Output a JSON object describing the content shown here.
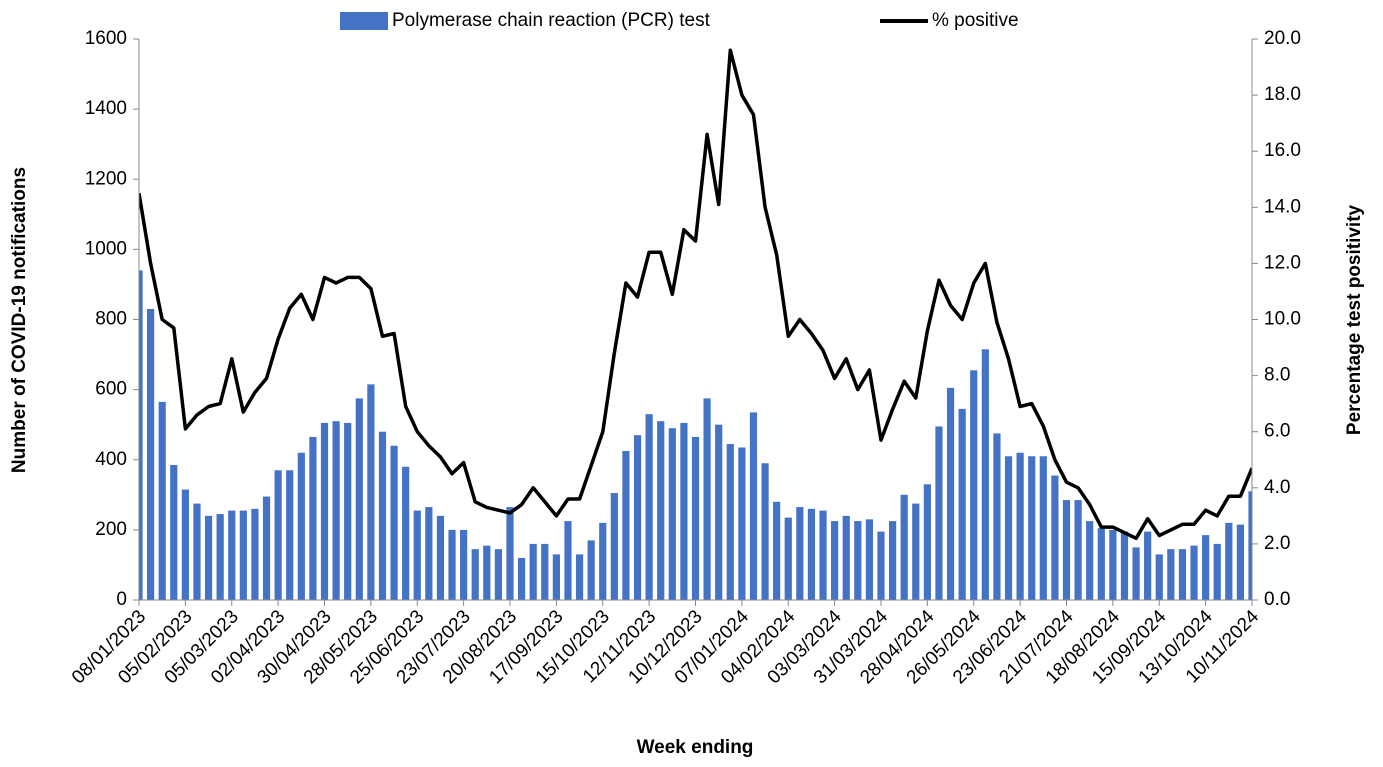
{
  "chart_data": {
    "type": "bar-line",
    "x_label": "Week ending",
    "y_label": "Number of COVID-19 notifications",
    "y2_label": "Percentage test positivity",
    "categories": [
      "08/01/2023",
      null,
      null,
      null,
      "05/02/2023",
      null,
      null,
      null,
      "05/03/2023",
      null,
      null,
      null,
      "02/04/2023",
      null,
      null,
      null,
      "30/04/2023",
      null,
      null,
      null,
      "28/05/2023",
      null,
      null,
      null,
      "25/06/2023",
      null,
      null,
      null,
      "23/07/2023",
      null,
      null,
      null,
      "20/08/2023",
      null,
      null,
      null,
      "17/09/2023",
      null,
      null,
      null,
      "15/10/2023",
      null,
      null,
      null,
      "12/11/2023",
      null,
      null,
      null,
      "10/12/2023",
      null,
      null,
      null,
      "07/01/2024",
      null,
      null,
      null,
      "04/02/2024",
      null,
      null,
      null,
      "03/03/2024",
      null,
      null,
      null,
      "31/03/2024",
      null,
      null,
      null,
      "28/04/2024",
      null,
      null,
      null,
      "26/05/2024",
      null,
      null,
      null,
      "23/06/2024",
      null,
      null,
      null,
      "21/07/2024",
      null,
      null,
      null,
      "18/08/2024",
      null,
      null,
      null,
      "15/09/2024",
      null,
      null,
      null,
      "13/10/2024",
      null,
      null,
      null,
      "10/11/2024"
    ],
    "series": [
      {
        "name": "Polymerase chain reaction (PCR) test",
        "type": "bar",
        "color": "#4472c4",
        "values": [
          940,
          830,
          565,
          385,
          315,
          275,
          240,
          245,
          255,
          255,
          260,
          295,
          370,
          370,
          420,
          465,
          505,
          510,
          505,
          575,
          615,
          480,
          440,
          380,
          255,
          265,
          240,
          200,
          200,
          145,
          155,
          145,
          265,
          120,
          160,
          160,
          130,
          225,
          130,
          170,
          220,
          305,
          425,
          470,
          530,
          510,
          490,
          505,
          465,
          575,
          500,
          445,
          435,
          535,
          390,
          280,
          235,
          265,
          260,
          255,
          225,
          240,
          225,
          230,
          195,
          225,
          300,
          275,
          330,
          495,
          605,
          545,
          655,
          715,
          475,
          410,
          420,
          410,
          410,
          355,
          285,
          285,
          225,
          205,
          200,
          195,
          150,
          195,
          130,
          145,
          145,
          155,
          185,
          160,
          220,
          215,
          310
        ]
      },
      {
        "name": "% positive",
        "type": "line",
        "color": "#000000",
        "axis": "y2",
        "values": [
          14.5,
          12.0,
          10.0,
          9.7,
          6.1,
          6.6,
          6.9,
          7.0,
          8.6,
          6.7,
          7.4,
          7.9,
          9.3,
          10.4,
          10.9,
          10.0,
          11.5,
          11.3,
          11.5,
          11.5,
          11.1,
          9.4,
          9.5,
          6.9,
          6.0,
          5.5,
          5.1,
          4.5,
          4.9,
          3.5,
          3.3,
          3.2,
          3.1,
          3.4,
          4.0,
          3.5,
          3.0,
          3.6,
          3.6,
          4.8,
          6.0,
          8.8,
          11.3,
          10.8,
          12.4,
          12.4,
          10.9,
          13.2,
          12.8,
          16.6,
          14.1,
          19.6,
          18.0,
          17.3,
          14.0,
          12.3,
          9.4,
          10.0,
          9.5,
          8.9,
          7.9,
          8.6,
          7.5,
          8.2,
          5.7,
          6.8,
          7.8,
          7.2,
          9.6,
          11.4,
          10.5,
          10.0,
          11.3,
          12.0,
          9.9,
          8.6,
          6.9,
          7.0,
          6.2,
          5.0,
          4.2,
          4.0,
          3.4,
          2.6,
          2.6,
          2.4,
          2.2,
          2.9,
          2.3,
          2.5,
          2.7,
          2.7,
          3.2,
          3.0,
          3.7,
          3.7,
          4.7
        ]
      }
    ],
    "ylim": [
      0,
      1600
    ],
    "yticks": [
      0,
      200,
      400,
      600,
      800,
      1000,
      1200,
      1400,
      1600
    ],
    "y2lim": [
      0,
      20
    ],
    "y2ticks": [
      {
        "value": 0,
        "label": "0.0"
      },
      {
        "value": 2,
        "label": "2.0"
      },
      {
        "value": 4,
        "label": "4.0"
      },
      {
        "value": 6,
        "label": "6.0"
      },
      {
        "value": 8,
        "label": "8.0"
      },
      {
        "value": 10,
        "label": "10.0"
      },
      {
        "value": 12,
        "label": "12.0"
      },
      {
        "value": 14,
        "label": "14.0"
      },
      {
        "value": 16,
        "label": "16.0"
      },
      {
        "value": 18,
        "label": "18.0"
      },
      {
        "value": 20,
        "label": "20.0"
      }
    ],
    "legend": "top",
    "grid": false
  }
}
